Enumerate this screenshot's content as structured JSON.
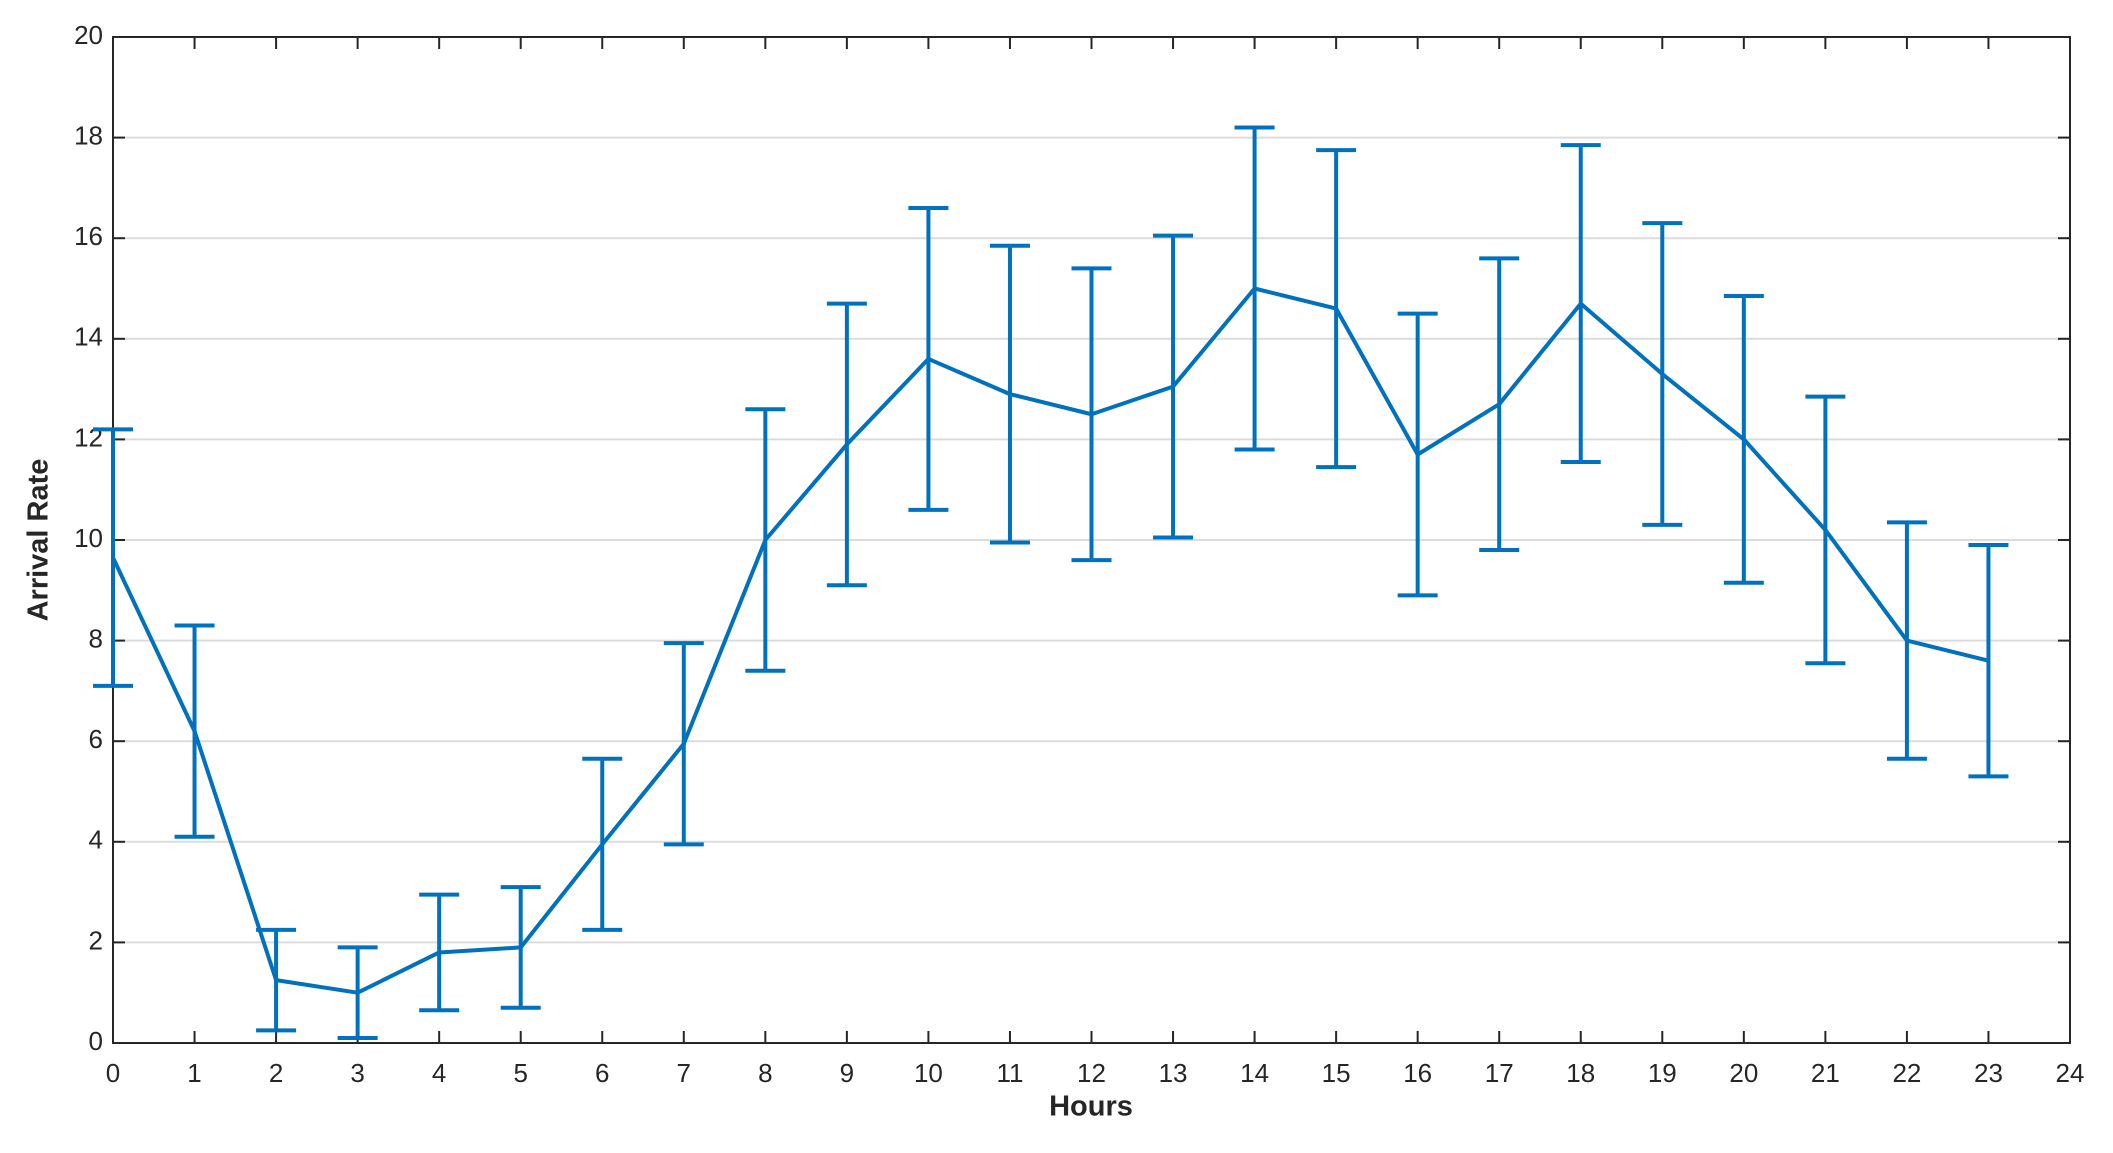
{
  "chart_data": {
    "type": "errorbar",
    "xlabel": "Hours",
    "ylabel": "Arrival Rate",
    "x": [
      0,
      1,
      2,
      3,
      4,
      5,
      6,
      7,
      8,
      9,
      10,
      11,
      12,
      13,
      14,
      15,
      16,
      17,
      18,
      19,
      20,
      21,
      22,
      23
    ],
    "series": [
      {
        "color": "#0072bd",
        "values": [
          9.65,
          6.2,
          1.25,
          1.0,
          1.8,
          1.9,
          3.95,
          5.95,
          10.0,
          11.9,
          13.6,
          12.9,
          12.5,
          13.05,
          15.0,
          14.6,
          11.7,
          12.7,
          14.7,
          13.3,
          12.0,
          10.2,
          8.0,
          7.6
        ],
        "errors": [
          2.55,
          2.1,
          1.0,
          0.9,
          1.15,
          1.2,
          1.7,
          2.0,
          2.6,
          2.8,
          3.0,
          2.95,
          2.9,
          3.0,
          3.2,
          3.15,
          2.8,
          2.9,
          3.15,
          3.0,
          2.85,
          2.65,
          2.35,
          2.3
        ]
      }
    ],
    "xlim": [
      0,
      24
    ],
    "xticks": [
      0,
      1,
      2,
      3,
      4,
      5,
      6,
      7,
      8,
      9,
      10,
      11,
      12,
      13,
      14,
      15,
      16,
      17,
      18,
      19,
      20,
      21,
      22,
      23,
      24
    ],
    "ylim": [
      0,
      20
    ],
    "yticks": [
      0,
      2,
      4,
      6,
      8,
      10,
      12,
      14,
      16,
      18,
      20
    ],
    "grid": true
  }
}
